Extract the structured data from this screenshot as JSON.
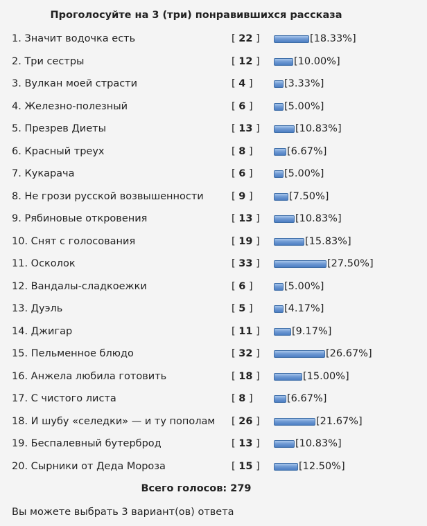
{
  "poll": {
    "title": "Проголосуйте на 3 (три) понравившихся рассказа",
    "options": [
      {
        "label": "1. Значит водочка есть",
        "votes": "22",
        "percent": "[18.33%]",
        "share": 18.33
      },
      {
        "label": "2. Три сестры",
        "votes": "12",
        "percent": "[10.00%]",
        "share": 10.0
      },
      {
        "label": "3. Вулкан моей страсти",
        "votes": "4",
        "percent": "[3.33%]",
        "share": 3.33
      },
      {
        "label": "4. Железно-полезный",
        "votes": "6",
        "percent": "[5.00%]",
        "share": 5.0
      },
      {
        "label": "5. Презрев Диеты",
        "votes": "13",
        "percent": "[10.83%]",
        "share": 10.83
      },
      {
        "label": "6. Красный треух",
        "votes": "8",
        "percent": "[6.67%]",
        "share": 6.67
      },
      {
        "label": "7. Кукарача",
        "votes": "6",
        "percent": "[5.00%]",
        "share": 5.0
      },
      {
        "label": "8. Не грози русской возвышенности",
        "votes": "9",
        "percent": "[7.50%]",
        "share": 7.5
      },
      {
        "label": "9. Рябиновые откровения",
        "votes": "13",
        "percent": "[10.83%]",
        "share": 10.83
      },
      {
        "label": "10. Снят с голосования",
        "votes": "19",
        "percent": "[15.83%]",
        "share": 15.83
      },
      {
        "label": "11. Осколок",
        "votes": "33",
        "percent": "[27.50%]",
        "share": 27.5
      },
      {
        "label": "12. Вандалы-сладкоежки",
        "votes": "6",
        "percent": "[5.00%]",
        "share": 5.0
      },
      {
        "label": "13. Дуэль",
        "votes": "5",
        "percent": "[4.17%]",
        "share": 4.17
      },
      {
        "label": "14. Джигар",
        "votes": "11",
        "percent": "[9.17%]",
        "share": 9.17
      },
      {
        "label": "15. Пельменное блюдо",
        "votes": "32",
        "percent": "[26.67%]",
        "share": 26.67
      },
      {
        "label": "16. Анжела любила готовить",
        "votes": "18",
        "percent": "[15.00%]",
        "share": 15.0
      },
      {
        "label": "17. С чистого листа",
        "votes": "8",
        "percent": "[6.67%]",
        "share": 6.67
      },
      {
        "label": "18. И шубу «селедки» — и ту пополам",
        "votes": "26",
        "percent": "[21.67%]",
        "share": 21.67
      },
      {
        "label": "19. Беспалевный бутерброд",
        "votes": "13",
        "percent": "[10.83%]",
        "share": 10.83
      },
      {
        "label": "20. Сырники от Деда Мороза",
        "votes": "15",
        "percent": "[12.50%]",
        "share": 12.5
      }
    ],
    "total_label": "Всего голосов: 279",
    "note": "Вы можете выбрать 3 вариант(ов) ответа",
    "bar_color": "#5b8ccb",
    "bar_border_color": "#3e6ea8"
  }
}
